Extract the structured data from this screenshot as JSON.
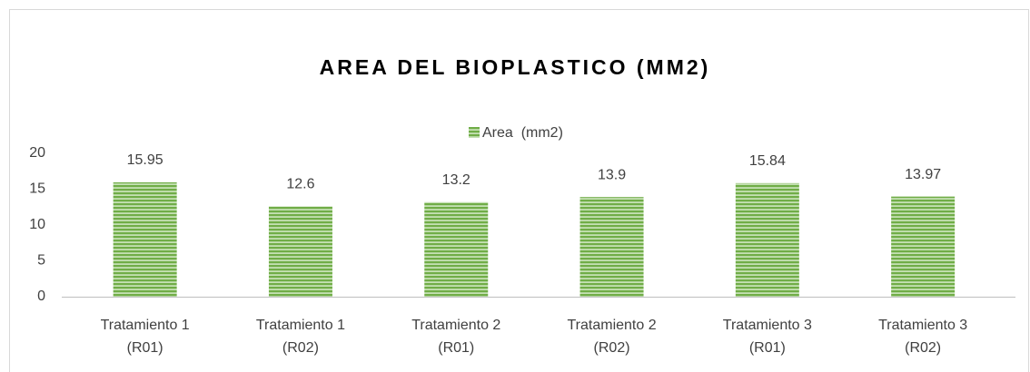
{
  "chart_data": {
    "type": "bar",
    "title": "AREA DEL BIOPLASTICO  (MM2)",
    "categories": [
      "Tratamiento 1\n(R01)",
      "Tratamiento 1\n(R02)",
      "Tratamiento 2\n(R01)",
      "Tratamiento 2\n(R02)",
      "Tratamiento 3\n(R01)",
      "Tratamiento 3\n(R02)"
    ],
    "series": [
      {
        "name": "Area  (mm2)",
        "color": "#70ad47",
        "values": [
          15.95,
          12.6,
          13.2,
          13.9,
          15.84,
          13.97
        ]
      }
    ],
    "ylim": [
      0,
      20
    ],
    "yticks": [
      0,
      5,
      10,
      15,
      20
    ],
    "grid": false,
    "legend": "top"
  }
}
